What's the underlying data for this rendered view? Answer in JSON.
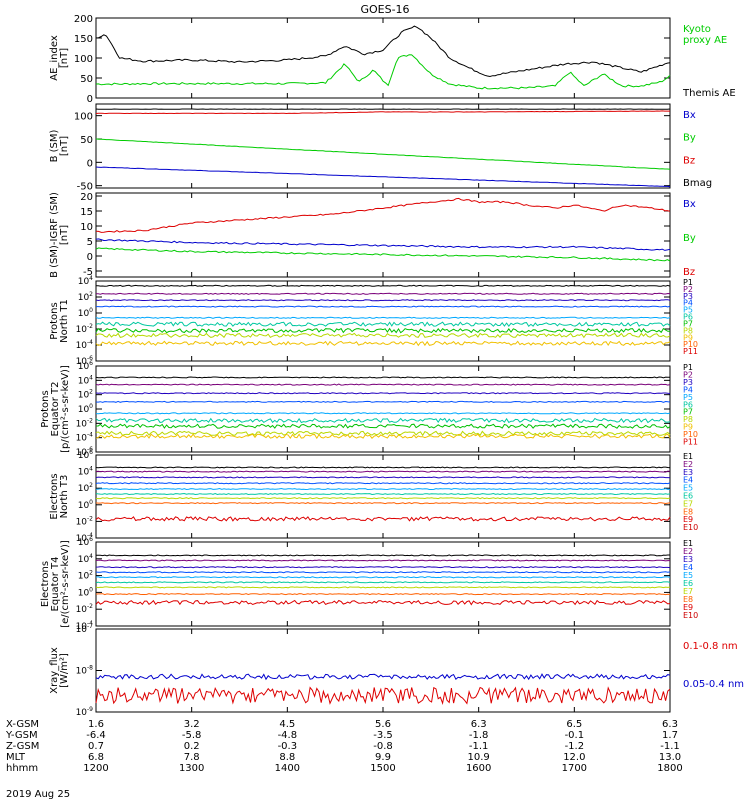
{
  "title": "GOES-16",
  "date_label": "2019 Aug 25",
  "ephemeris": {
    "rows": [
      {
        "label": "X-GSM",
        "values": [
          "1.6",
          "3.2",
          "4.5",
          "5.6",
          "6.3",
          "6.5",
          "6.3"
        ]
      },
      {
        "label": "Y-GSM",
        "values": [
          "-6.4",
          "-5.8",
          "-4.8",
          "-3.5",
          "-1.8",
          "-0.1",
          "1.7"
        ]
      },
      {
        "label": "Z-GSM",
        "values": [
          "0.7",
          "0.2",
          "-0.3",
          "-0.8",
          "-1.1",
          "-1.2",
          "-1.1"
        ]
      },
      {
        "label": "MLT",
        "values": [
          "6.8",
          "7.8",
          "8.8",
          "9.9",
          "10.9",
          "12.0",
          "13.0"
        ]
      },
      {
        "label": "hhmm",
        "values": [
          "1200",
          "1300",
          "1400",
          "1500",
          "1600",
          "1700",
          "1800"
        ]
      }
    ]
  },
  "colors": {
    "black": "#000000",
    "green": "#00cc00",
    "red": "#dd0000",
    "blue": "#0000cc",
    "p1": "#000000",
    "p2": "#7a007a",
    "p3": "#2000c0",
    "p4": "#0050ff",
    "p5": "#00a8ff",
    "p6": "#00c8a0",
    "p7": "#00c000",
    "p8": "#b8d800",
    "p9": "#f0c000",
    "p10": "#ff6000",
    "p11": "#dd0000"
  },
  "chart_data": [
    {
      "type": "line",
      "ylabel": "AE_index\n[nT]",
      "ylim": [
        0,
        200
      ],
      "yscale": "linear",
      "yticks": [
        "0",
        "50",
        "100",
        "150",
        "200"
      ],
      "x_hours": [
        12,
        18
      ],
      "grid": false,
      "series": [
        {
          "name": "Kyoto\nproxy AE",
          "color": "#00cc00",
          "x": [
            12.0,
            12.25,
            12.5,
            13.0,
            13.5,
            14.0,
            14.4,
            14.6,
            14.75,
            14.9,
            15.05,
            15.15,
            15.3,
            15.5,
            15.7,
            16.0,
            16.5,
            16.8,
            16.95,
            17.1,
            17.3,
            17.5,
            17.7,
            17.9,
            18.0
          ],
          "y": [
            35,
            35,
            36,
            36,
            36,
            36,
            38,
            85,
            40,
            70,
            30,
            100,
            110,
            60,
            35,
            25,
            25,
            30,
            65,
            30,
            60,
            30,
            30,
            40,
            55
          ]
        },
        {
          "name": "Themis AE",
          "color": "#000000",
          "x": [
            12.0,
            12.1,
            12.25,
            12.5,
            13.0,
            13.5,
            14.0,
            14.4,
            14.6,
            14.8,
            15.0,
            15.2,
            15.35,
            15.5,
            15.7,
            15.9,
            16.1,
            16.5,
            16.9,
            17.2,
            17.5,
            17.7,
            18.0
          ],
          "y": [
            150,
            160,
            100,
            92,
            95,
            90,
            95,
            105,
            130,
            110,
            120,
            165,
            180,
            150,
            100,
            75,
            55,
            70,
            85,
            90,
            75,
            65,
            90
          ]
        }
      ]
    },
    {
      "type": "line",
      "ylabel": "B (SM)\n[nT]",
      "ylim": [
        -55,
        125
      ],
      "yscale": "linear",
      "yticks": [
        "-50",
        "0",
        "50",
        "100"
      ],
      "x_hours": [
        12,
        18
      ],
      "series": [
        {
          "name": "Bx",
          "color": "#0000cc",
          "x": [
            12.0,
            18.0
          ],
          "y": [
            -10,
            -52
          ]
        },
        {
          "name": "By",
          "color": "#00cc00",
          "x": [
            12.0,
            18.0
          ],
          "y": [
            50,
            -15
          ]
        },
        {
          "name": "Bz",
          "color": "#dd0000",
          "x": [
            12.0,
            14.0,
            15.0,
            16.0,
            18.0
          ],
          "y": [
            105,
            105,
            108,
            108,
            110
          ]
        },
        {
          "name": "Bmag",
          "color": "#000000",
          "x": [
            12.0,
            18.0
          ],
          "y": [
            114,
            114
          ]
        }
      ]
    },
    {
      "type": "line",
      "ylabel": "B (SM)-IGRF (SM)\n[nT]",
      "ylim": [
        -7,
        21
      ],
      "yscale": "linear",
      "yticks": [
        "-5",
        "0",
        "5",
        "10",
        "15",
        "20"
      ],
      "x_hours": [
        12,
        18
      ],
      "series": [
        {
          "name": "Bx",
          "color": "#0000cc",
          "x": [
            12.0,
            12.5,
            13.0,
            14.0,
            15.0,
            16.0,
            17.0,
            18.0
          ],
          "y": [
            5.5,
            5.0,
            4.5,
            4.0,
            3.5,
            3.0,
            3.0,
            2.0
          ]
        },
        {
          "name": "By",
          "color": "#00cc00",
          "x": [
            12.0,
            13.0,
            14.0,
            15.0,
            16.0,
            17.0,
            18.0
          ],
          "y": [
            2.5,
            1.5,
            1.0,
            0.5,
            0.0,
            -0.5,
            -1.5
          ]
        },
        {
          "name": "Bz",
          "color": "#dd0000",
          "x": [
            12.0,
            12.5,
            13.0,
            13.5,
            14.0,
            14.5,
            15.0,
            15.5,
            15.8,
            16.0,
            16.3,
            16.5,
            16.8,
            17.0,
            17.3,
            17.5,
            17.8,
            18.0
          ],
          "y": [
            8,
            8.5,
            11,
            12,
            13,
            14,
            16,
            18,
            19,
            18,
            18,
            17,
            16,
            17,
            15,
            17,
            16,
            15
          ]
        }
      ]
    },
    {
      "type": "line",
      "ylabel": "Protons\nNorth T1",
      "yscale": "log",
      "ylim": [
        -6,
        4
      ],
      "yticks": [
        -6,
        -4,
        -2,
        0,
        2,
        4
      ],
      "x_hours": [
        12,
        18
      ],
      "series": [
        {
          "name": "P1",
          "color": "#000000",
          "logy": 3.4
        },
        {
          "name": "P2",
          "color": "#7a007a",
          "logy": 2.4
        },
        {
          "name": "P3",
          "color": "#2000c0",
          "logy": 1.6
        },
        {
          "name": "P4",
          "color": "#0050ff",
          "logy": 0.8
        },
        {
          "name": "P5",
          "color": "#00a8ff",
          "logy": -0.6
        },
        {
          "name": "P6",
          "color": "#00c8a0",
          "logy": -1.4
        },
        {
          "name": "P7",
          "color": "#00c000",
          "logy": -2.2
        },
        {
          "name": "P8",
          "color": "#b8d800",
          "logy": -2.8
        },
        {
          "name": "P9",
          "color": "#f0c000",
          "logy": -3.8
        },
        {
          "name": "P10",
          "color": "#ff6000",
          "logy": null
        },
        {
          "name": "P11",
          "color": "#dd0000",
          "logy": null
        }
      ]
    },
    {
      "type": "line",
      "ylabel": "Protons\nEquator T2\n[p/(cm²-s-sr-keV)]",
      "yscale": "log",
      "ylim": [
        -6,
        6
      ],
      "yticks": [
        -6,
        -4,
        -2,
        0,
        2,
        4,
        6
      ],
      "x_hours": [
        12,
        18
      ],
      "series": [
        {
          "name": "P1",
          "color": "#000000",
          "logy": 4.4
        },
        {
          "name": "P2",
          "color": "#7a007a",
          "logy": 3.4
        },
        {
          "name": "P3",
          "color": "#2000c0",
          "logy": 2.2
        },
        {
          "name": "P4",
          "color": "#0050ff",
          "logy": 1.0
        },
        {
          "name": "P5",
          "color": "#00a8ff",
          "logy": -0.6
        },
        {
          "name": "P6",
          "color": "#00c8a0",
          "logy": -1.6
        },
        {
          "name": "P7",
          "color": "#00c000",
          "logy": -2.4
        },
        {
          "name": "P8",
          "color": "#b8d800",
          "logy": -3.4
        },
        {
          "name": "P9",
          "color": "#f0c000",
          "logy": -3.8
        },
        {
          "name": "P10",
          "color": "#ff6000",
          "logy": null
        },
        {
          "name": "P11",
          "color": "#dd0000",
          "logy": null
        }
      ]
    },
    {
      "type": "line",
      "ylabel": "Electrons\nNorth T3",
      "yscale": "log",
      "ylim": [
        -4,
        6
      ],
      "yticks": [
        -4,
        -2,
        0,
        2,
        4,
        6
      ],
      "x_hours": [
        12,
        18
      ],
      "series": [
        {
          "name": "E1",
          "color": "#000000",
          "logy": 4.5
        },
        {
          "name": "E2",
          "color": "#7a007a",
          "logy": 4.0
        },
        {
          "name": "E3",
          "color": "#2000c0",
          "logy": 3.3
        },
        {
          "name": "E4",
          "color": "#0050ff",
          "logy": 2.6
        },
        {
          "name": "E5",
          "color": "#00a8ff",
          "logy": 1.9
        },
        {
          "name": "E6",
          "color": "#00c8a0",
          "logy": 1.3
        },
        {
          "name": "E7",
          "color": "#b8d800",
          "logy": 0.8
        },
        {
          "name": "E8",
          "color": "#ff6000",
          "logy": 0.2
        },
        {
          "name": "E9",
          "color": "#dd0000",
          "logy": -1.7
        },
        {
          "name": "E10",
          "color": "#cc0000",
          "logy": null
        }
      ]
    },
    {
      "type": "line",
      "ylabel": "Electrons\nEquator T4\n[e/(cm²-s-sr-keV)]",
      "yscale": "log",
      "ylim": [
        -4,
        6
      ],
      "yticks": [
        -4,
        -2,
        0,
        2,
        4,
        6
      ],
      "x_hours": [
        12,
        18
      ],
      "series": [
        {
          "name": "E1",
          "color": "#000000",
          "logy": 4.4
        },
        {
          "name": "E2",
          "color": "#7a007a",
          "logy": 3.8
        },
        {
          "name": "E3",
          "color": "#2000c0",
          "logy": 3.0
        },
        {
          "name": "E4",
          "color": "#0050ff",
          "logy": 2.4
        },
        {
          "name": "E5",
          "color": "#00a8ff",
          "logy": 1.8
        },
        {
          "name": "E6",
          "color": "#00c8a0",
          "logy": 1.2
        },
        {
          "name": "E7",
          "color": "#b8d800",
          "logy": 0.6
        },
        {
          "name": "E8",
          "color": "#ff6000",
          "logy": -0.2
        },
        {
          "name": "E9",
          "color": "#dd0000",
          "logy": -1.2
        },
        {
          "name": "E10",
          "color": "#cc0000",
          "logy": null
        }
      ]
    },
    {
      "type": "line",
      "ylabel": "Xray_flux\n[W/m²]",
      "yscale": "log",
      "ylim": [
        -9,
        -7
      ],
      "yticks": [
        -9,
        -8,
        -7
      ],
      "x_hours": [
        12,
        18
      ],
      "series": [
        {
          "name": "0.1-0.8 nm",
          "color": "#dd0000",
          "logy": -8.6
        },
        {
          "name": "0.05-0.4 nm",
          "color": "#0000cc",
          "logy": -8.15
        }
      ]
    }
  ]
}
